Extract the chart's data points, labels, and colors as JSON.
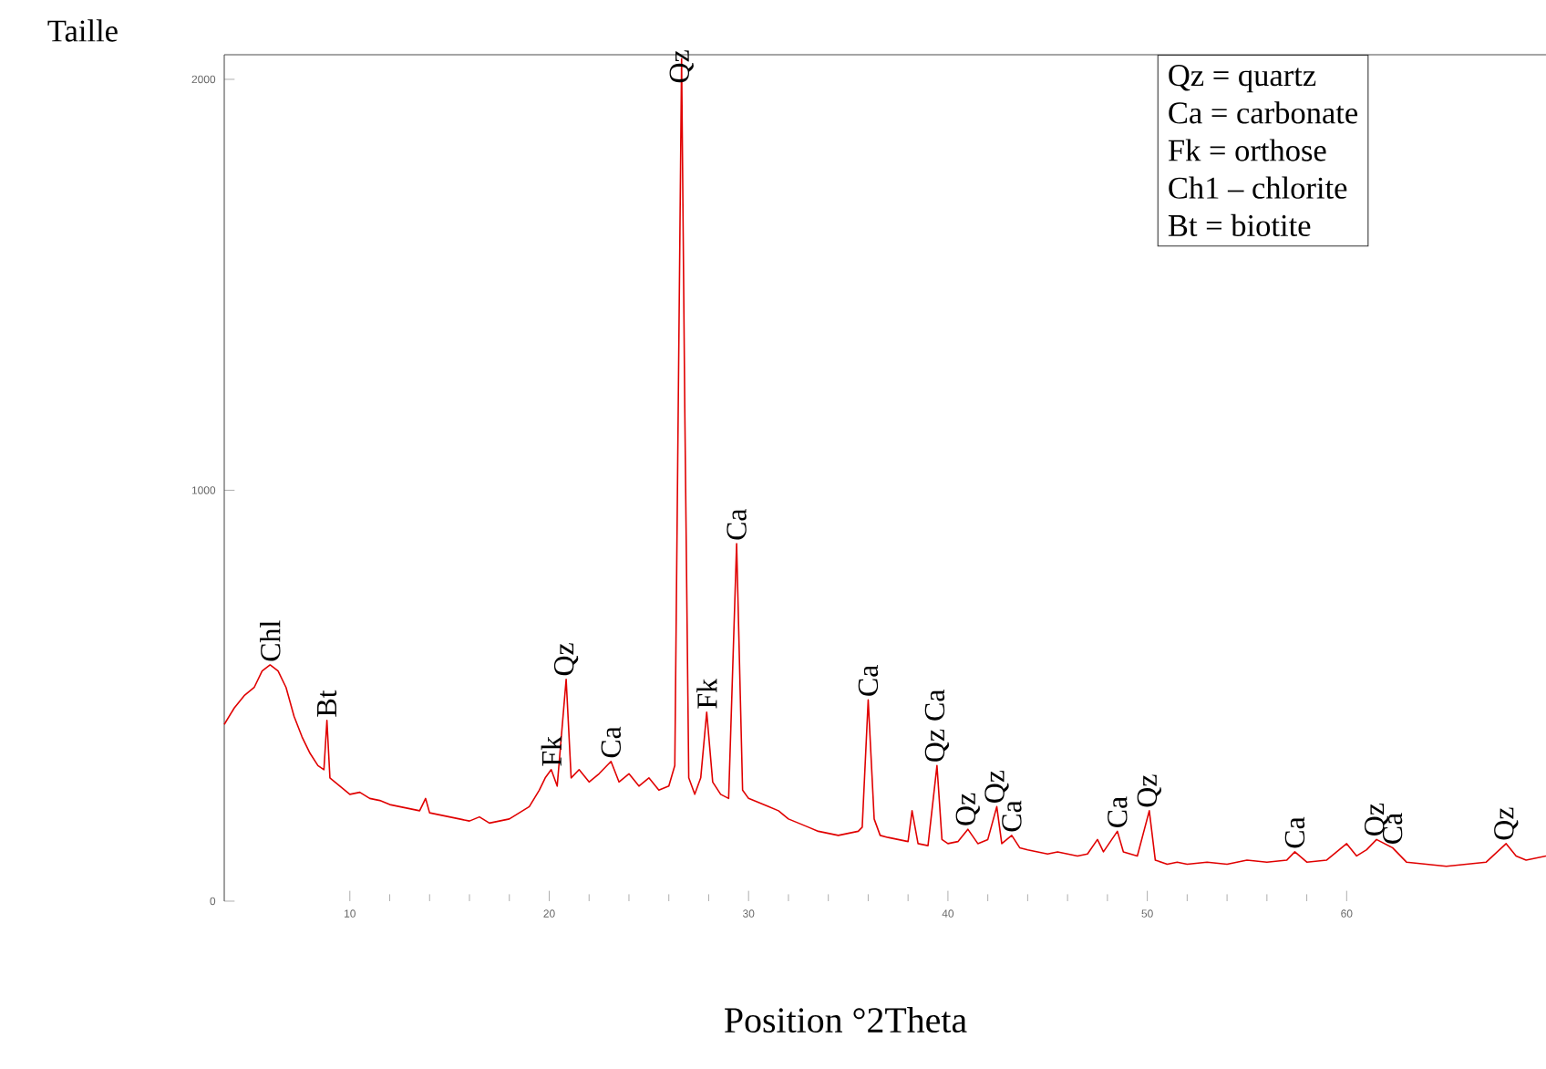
{
  "chart_data": {
    "type": "line",
    "xlabel": "Position °2Theta",
    "ylabel": "Taille",
    "xlim": [
      3.7,
      70
    ],
    "ylim": [
      0,
      2060
    ],
    "xticks": [
      10,
      20,
      30,
      40,
      50,
      60
    ],
    "yticks": [
      0,
      1000,
      2000
    ],
    "series": [
      {
        "color": "#e00000",
        "x": [
          3.7,
          4.2,
          4.7,
          5.2,
          5.6,
          6.0,
          6.4,
          6.8,
          7.2,
          7.6,
          8.0,
          8.4,
          8.7,
          8.85,
          9.0,
          9.5,
          10,
          10.5,
          11,
          11.5,
          12,
          12.5,
          13,
          13.5,
          13.8,
          14,
          14.5,
          15,
          15.5,
          16,
          16.5,
          17,
          17.5,
          18,
          18.5,
          19,
          19.5,
          19.8,
          20.1,
          20.4,
          20.85,
          21.1,
          21.5,
          22,
          22.5,
          23.1,
          23.5,
          24,
          24.5,
          25,
          25.5,
          26,
          26.3,
          26.64,
          26.8,
          27.0,
          27.3,
          27.6,
          27.9,
          28.2,
          28.6,
          29.0,
          29.4,
          29.7,
          30,
          30.5,
          31,
          31.5,
          32,
          32.5,
          33,
          33.5,
          34,
          34.5,
          35,
          35.5,
          35.7,
          36.0,
          36.3,
          36.6,
          37,
          37.5,
          38.0,
          38.2,
          38.5,
          39,
          39.45,
          39.7,
          40,
          40.5,
          41.0,
          41.5,
          42,
          42.45,
          42.7,
          43.2,
          43.6,
          44,
          44.5,
          45,
          45.5,
          46,
          46.5,
          47,
          47.5,
          47.8,
          48.5,
          48.8,
          49.5,
          50.1,
          50.4,
          51,
          51.5,
          52,
          53,
          54,
          55,
          56,
          57,
          57.4,
          58,
          59,
          60.0,
          60.5,
          61.0,
          61.5,
          62.3,
          63,
          64,
          65,
          66,
          67,
          68,
          68.5,
          69,
          70
        ],
        "values": [
          430,
          470,
          500,
          520,
          560,
          575,
          560,
          520,
          450,
          400,
          360,
          330,
          320,
          440,
          300,
          280,
          260,
          265,
          250,
          245,
          235,
          230,
          225,
          220,
          250,
          215,
          210,
          205,
          200,
          195,
          205,
          190,
          195,
          200,
          215,
          230,
          270,
          300,
          320,
          280,
          540,
          300,
          320,
          290,
          310,
          340,
          290,
          310,
          280,
          300,
          270,
          280,
          330,
          2050,
          1200,
          300,
          260,
          300,
          460,
          290,
          260,
          250,
          870,
          270,
          250,
          240,
          230,
          220,
          200,
          190,
          180,
          170,
          165,
          160,
          165,
          170,
          180,
          490,
          200,
          160,
          155,
          150,
          145,
          220,
          140,
          135,
          330,
          150,
          140,
          145,
          175,
          140,
          150,
          230,
          140,
          160,
          130,
          125,
          120,
          115,
          120,
          115,
          110,
          115,
          150,
          120,
          170,
          120,
          110,
          220,
          100,
          90,
          95,
          90,
          95,
          90,
          100,
          95,
          100,
          120,
          95,
          100,
          140,
          110,
          125,
          150,
          130,
          95,
          90,
          85,
          90,
          95,
          140,
          110,
          100,
          110
        ]
      }
    ],
    "annotations": [
      {
        "text": "Chl",
        "x": 6.0,
        "y": 575
      },
      {
        "text": "Bt",
        "x": 8.85,
        "y": 440
      },
      {
        "text": "Fk",
        "x": 20.1,
        "y": 320
      },
      {
        "text": "Qz",
        "x": 20.85,
        "y": 540
      },
      {
        "text": "Ca",
        "x": 23.1,
        "y": 340
      },
      {
        "text": "Qz",
        "x": 26.64,
        "y": 2050
      },
      {
        "text": "Fk",
        "x": 27.9,
        "y": 460
      },
      {
        "text": "Ca",
        "x": 29.4,
        "y": 870
      },
      {
        "text": "Ca",
        "x": 36.0,
        "y": 490
      },
      {
        "text": "Qz Ca",
        "x": 39.45,
        "y": 330
      },
      {
        "text": "Qz",
        "x": 41.0,
        "y": 175
      },
      {
        "text": "Qz",
        "x": 42.45,
        "y": 230
      },
      {
        "text": "Ca",
        "x": 43.2,
        "y": 160
      },
      {
        "text": "Ca",
        "x": 48.5,
        "y": 170
      },
      {
        "text": "Qz",
        "x": 50.1,
        "y": 220
      },
      {
        "text": "Ca",
        "x": 57.4,
        "y": 120
      },
      {
        "text": "Qz",
        "x": 61.5,
        "y": 150
      },
      {
        "text": "Ca",
        "x": 62.3,
        "y": 130
      },
      {
        "text": "Qz",
        "x": 68,
        "y": 140
      },
      "Qz = quartz",
      "Ca = carbonate",
      "Fk = orthose",
      "Ch1 – chlorite",
      "Bt = biotite"
    ]
  }
}
